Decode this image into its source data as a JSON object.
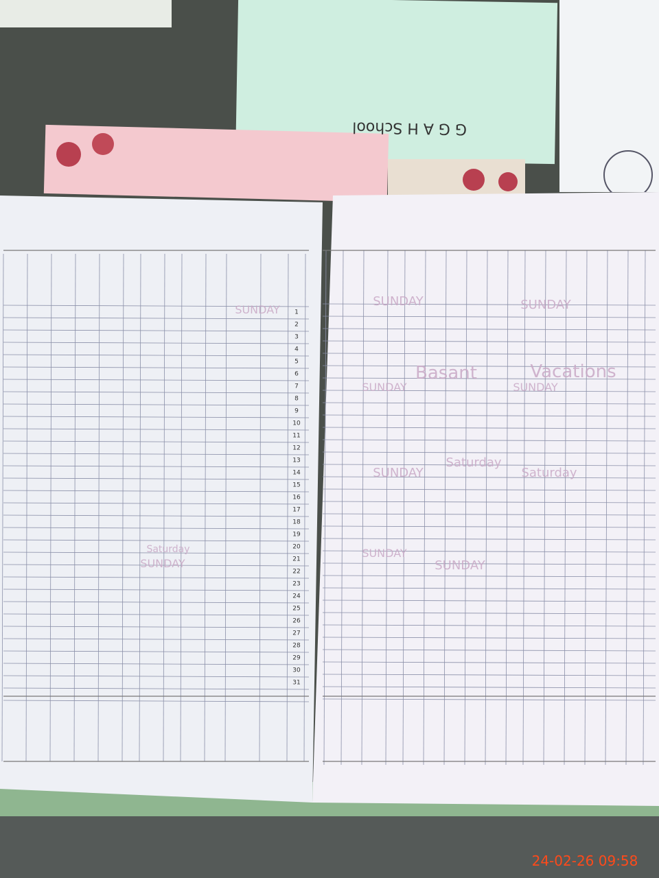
{
  "top_card": {
    "text": "G G A H School"
  },
  "register": {
    "left_page": {
      "row_numbers": [
        1,
        2,
        3,
        4,
        5,
        6,
        7,
        8,
        9,
        10,
        11,
        12,
        13,
        14,
        15,
        16,
        17,
        18,
        19,
        20,
        21,
        22,
        23,
        24,
        25,
        26,
        27,
        28,
        29,
        30,
        31
      ],
      "handwritten": [
        "SUNDAY",
        "Saturday",
        "SUNDAY"
      ]
    },
    "right_page": {
      "handwritten": [
        "SUNDAY",
        "SUNDAY",
        "Basant",
        "Vacations",
        "SUNDAY",
        "SUNDAY",
        "Saturday",
        "SUNDAY",
        "Saturday",
        "SUNDAY",
        "SUNDAY"
      ]
    }
  },
  "timestamp": "24-02-26  09:58"
}
